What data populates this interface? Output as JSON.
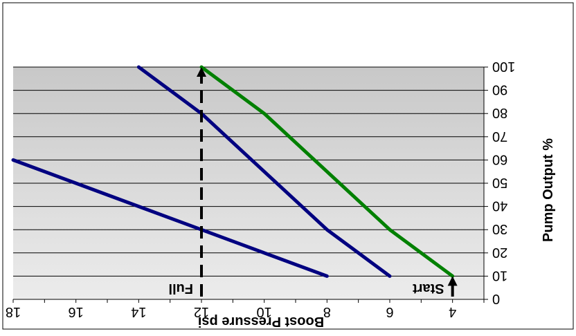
{
  "chart_data": {
    "type": "line",
    "orientation": "rotated-180",
    "xlabel": "Boost Pressure psi",
    "ylabel": "Pump Output %",
    "xlim": [
      3,
      18
    ],
    "ylim": [
      0,
      100
    ],
    "x_ticks": [
      4,
      6,
      8,
      10,
      12,
      14,
      16,
      18
    ],
    "y_ticks": [
      0,
      10,
      20,
      30,
      40,
      50,
      60,
      70,
      80,
      90,
      100
    ],
    "grid": "horizontal",
    "legend": "none",
    "series": [
      {
        "color": "#008000",
        "points": [
          [
            4,
            10
          ],
          [
            6,
            30
          ],
          [
            8,
            55
          ],
          [
            10,
            80
          ],
          [
            12,
            100
          ]
        ]
      },
      {
        "color": "#000080",
        "points": [
          [
            6,
            10
          ],
          [
            8,
            30
          ],
          [
            10,
            55
          ],
          [
            12,
            80
          ],
          [
            14,
            100
          ]
        ]
      },
      {
        "color": "#000080",
        "points": [
          [
            8,
            10
          ],
          [
            10,
            20
          ],
          [
            12,
            30
          ],
          [
            14,
            40
          ],
          [
            16,
            50
          ],
          [
            18,
            60
          ]
        ]
      }
    ],
    "annotations": [
      {
        "text": "Start",
        "x": 4,
        "y": 0,
        "style": "solid-arrow",
        "arrow_to": [
          4,
          10
        ]
      },
      {
        "text": "Full",
        "x": 12,
        "y": 0,
        "style": "dashed-arrow",
        "arrow_to": [
          12,
          100
        ]
      }
    ],
    "colors": {
      "background": "#d4d4d4",
      "grid": "#000000",
      "frame": "#000000"
    }
  }
}
